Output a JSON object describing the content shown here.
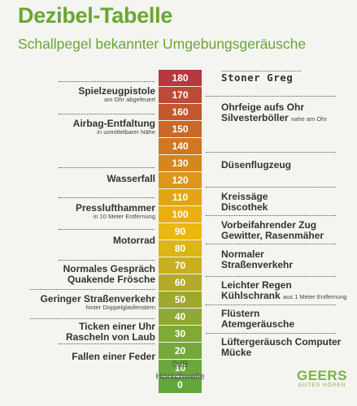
{
  "header": {
    "title": "Dezibel-Tabelle",
    "subtitle": "Schallpegel bekannter Umgebungsgeräusche"
  },
  "scale": {
    "levels": [
      {
        "value": "180",
        "color": "#b7383f"
      },
      {
        "value": "170",
        "color": "#bd4a36"
      },
      {
        "value": "160",
        "color": "#c3582f"
      },
      {
        "value": "150",
        "color": "#c96828"
      },
      {
        "value": "140",
        "color": "#cf7722"
      },
      {
        "value": "130",
        "color": "#d5861d"
      },
      {
        "value": "120",
        "color": "#dc961a"
      },
      {
        "value": "110",
        "color": "#e3a516"
      },
      {
        "value": "100",
        "color": "#e9b012"
      },
      {
        "value": "90",
        "color": "#eab80f"
      },
      {
        "value": "80",
        "color": "#dcb516"
      },
      {
        "value": "70",
        "color": "#c9b020"
      },
      {
        "value": "60",
        "color": "#b3aa2a"
      },
      {
        "value": "50",
        "color": "#9fa82e"
      },
      {
        "value": "40",
        "color": "#8ea934"
      },
      {
        "value": "30",
        "color": "#7fa938"
      },
      {
        "value": "20",
        "color": "#74a93a"
      },
      {
        "value": "10",
        "color": "#6ba83c"
      },
      {
        "value": "0",
        "color": "#62a63d"
      }
    ],
    "zero_db": "0dB",
    "threshold": "Hörschwelle"
  },
  "right_labels": {
    "stoner": "Stoner Greg",
    "ohrfeige": "Ohrfeige aufs Ohr",
    "silvester": "Silvesterböller",
    "silvester_note": "nahe am Ohr",
    "duesenflugzeug": "Düsenflugzeug",
    "kreissaege": "Kreissäge",
    "discothek": "Discothek",
    "zug": "Vorbeifahrender Zug",
    "gewitter": "Gewitter, Rasenmäher",
    "normaler": "Normaler",
    "strassenverkehr": "Straßenverkehr",
    "regen": "Leichter Regen",
    "kuehlschrank": "Kühlschrank",
    "kuehlschrank_note": "aus 1 Meter Entfernung",
    "fluestern": "Flüstern",
    "atem": "Atemgeräusche",
    "luefter": "Lüftergeräusch Computer",
    "muecke": "Mücke"
  },
  "left_labels": {
    "spielzeug": "Spielzeugpistole",
    "spielzeug_note": "am Ohr abgefeuert",
    "airbag": "Airbag-Entfaltung",
    "airbag_note": "in unmittelbarer Nähe",
    "wasserfall": "Wasserfall",
    "press": "Presslufthammer",
    "press_note": "in 10 Meter Entfernung",
    "motorrad": "Motorrad",
    "gespraech": "Normales Gespräch",
    "froesche": "Quakende Frösche",
    "gering": "Geringer Straßenverkehr",
    "gering_note": "hinter Doppelglasfenstern",
    "ticken": "Ticken einer Uhr",
    "rascheln": "Rascheln von Laub",
    "feder": "Fallen einer Feder"
  },
  "logo": {
    "name": "GEERS",
    "tagline": "GUTES HÖREN"
  }
}
